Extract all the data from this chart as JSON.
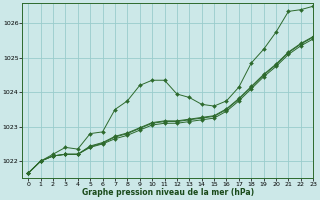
{
  "title": "Graphe pression niveau de la mer (hPa)",
  "background_color": "#cce8e8",
  "grid_color": "#99cccc",
  "line_color": "#2d6a2d",
  "marker_color": "#2d6a2d",
  "xlim": [
    -0.5,
    23
  ],
  "ylim": [
    1021.5,
    1026.6
  ],
  "yticks": [
    1022,
    1023,
    1024,
    1025,
    1026
  ],
  "xticks": [
    0,
    1,
    2,
    3,
    4,
    5,
    6,
    7,
    8,
    9,
    10,
    11,
    12,
    13,
    14,
    15,
    16,
    17,
    18,
    19,
    20,
    21,
    22,
    23
  ],
  "series": [
    [
      1021.65,
      1022.0,
      1022.2,
      1022.4,
      1022.35,
      1022.8,
      1022.85,
      1023.5,
      1023.75,
      1024.2,
      1024.35,
      1024.35,
      1023.95,
      1023.85,
      1023.65,
      1023.6,
      1023.75,
      1024.15,
      1024.85,
      1025.25,
      1025.75,
      1026.35,
      1026.4,
      1026.5
    ],
    [
      1021.65,
      1022.0,
      1022.15,
      1022.2,
      1022.2,
      1022.4,
      1022.5,
      1022.65,
      1022.75,
      1022.9,
      1023.05,
      1023.1,
      1023.1,
      1023.15,
      1023.2,
      1023.25,
      1023.45,
      1023.75,
      1024.1,
      1024.45,
      1024.75,
      1025.1,
      1025.35,
      1025.55
    ],
    [
      1021.65,
      1022.0,
      1022.15,
      1022.2,
      1022.2,
      1022.42,
      1022.52,
      1022.7,
      1022.8,
      1022.95,
      1023.1,
      1023.15,
      1023.15,
      1023.2,
      1023.25,
      1023.3,
      1023.5,
      1023.8,
      1024.15,
      1024.5,
      1024.8,
      1025.15,
      1025.4,
      1025.6
    ],
    [
      1021.65,
      1022.0,
      1022.15,
      1022.2,
      1022.2,
      1022.44,
      1022.54,
      1022.72,
      1022.82,
      1022.97,
      1023.12,
      1023.17,
      1023.17,
      1023.22,
      1023.27,
      1023.32,
      1023.52,
      1023.82,
      1024.17,
      1024.52,
      1024.82,
      1025.17,
      1025.42,
      1025.62
    ]
  ]
}
